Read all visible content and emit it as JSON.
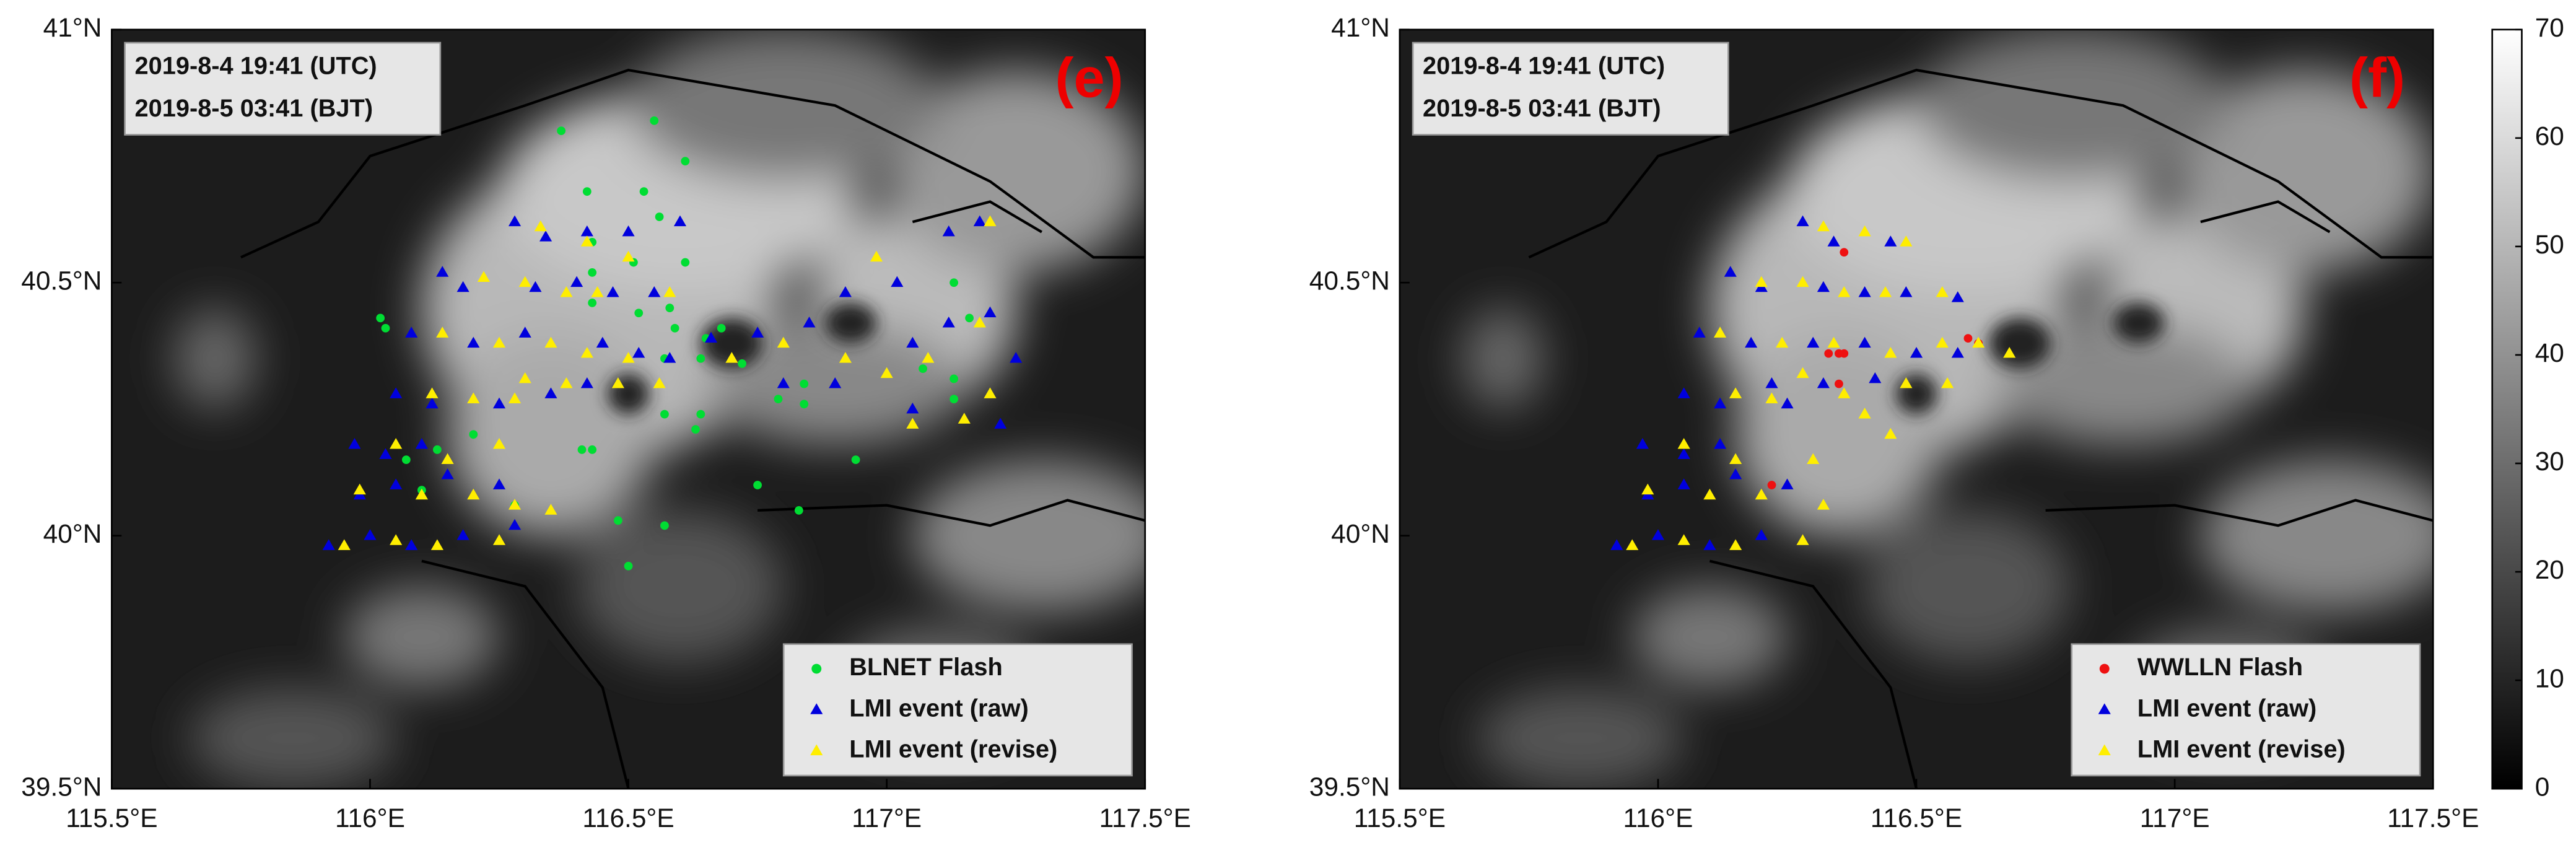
{
  "chart_data": [
    {
      "type": "scatter",
      "annotation": [
        "2019-8-4 19:41 (UTC)",
        "2019-8-5 03:41 (BJT)"
      ],
      "panel_label": "(e)",
      "xlim": [
        115.5,
        117.5
      ],
      "ylim": [
        39.5,
        41
      ],
      "xticks": [
        {
          "value": 115.5,
          "label": "115.5°E"
        },
        {
          "value": 116,
          "label": "116°E"
        },
        {
          "value": 116.5,
          "label": "116.5°E"
        },
        {
          "value": 117,
          "label": "117°E"
        },
        {
          "value": 117.5,
          "label": "117.5°E"
        }
      ],
      "yticks": [
        {
          "value": 39.5,
          "label": "39.5°N"
        },
        {
          "value": 40,
          "label": "40°N"
        },
        {
          "value": 40.5,
          "label": "40.5°N"
        },
        {
          "value": 41,
          "label": "41°N"
        }
      ],
      "legend": "lower right",
      "series": [
        {
          "name": "BLNET Flash",
          "color": "#00dd33",
          "marker": "circle",
          "x": [
            116.37,
            116.55,
            116.61,
            116.42,
            116.53,
            116.56,
            116.43,
            116.51,
            116.43,
            116.61,
            116.43,
            116.03,
            116.02,
            116.52,
            116.58,
            116.59,
            116.65,
            116.68,
            116.64,
            116.72,
            116.57,
            116.84,
            116.84,
            116.79,
            116.64,
            116.63,
            116.57,
            116.43,
            116.41,
            116.94,
            116.2,
            116.13,
            116.07,
            116.75,
            116.83,
            116.1,
            116.57,
            116.48,
            116.5,
            116.28,
            117.13,
            117.16,
            117.13,
            117.07,
            117.13
          ],
          "values": [
            40.8,
            40.82,
            40.74,
            40.68,
            40.68,
            40.63,
            40.58,
            40.54,
            40.52,
            40.54,
            40.46,
            40.41,
            40.43,
            40.44,
            40.45,
            40.41,
            40.39,
            40.41,
            40.35,
            40.34,
            40.35,
            40.3,
            40.26,
            40.27,
            40.24,
            40.21,
            40.24,
            40.17,
            40.17,
            40.15,
            40.2,
            40.17,
            40.15,
            40.1,
            40.05,
            40.09,
            40.02,
            40.03,
            39.94,
            40.06,
            40.31,
            40.43,
            40.27,
            40.33,
            40.5
          ]
        },
        {
          "name": "LMI event (raw)",
          "color": "#0000dd",
          "marker": "triangle",
          "x": [
            116.28,
            116.34,
            116.42,
            116.5,
            116.6,
            116.14,
            116.18,
            116.32,
            116.4,
            116.47,
            116.55,
            116.08,
            116.2,
            116.3,
            116.45,
            116.52,
            116.58,
            116.66,
            116.75,
            116.85,
            116.92,
            117.02,
            117.05,
            117.12,
            117.2,
            117.12,
            117.18,
            117.25,
            117.22,
            117.05,
            116.9,
            116.8,
            116.05,
            116.12,
            116.25,
            116.35,
            116.42,
            115.97,
            116.03,
            116.1,
            115.98,
            116.05,
            116.15,
            116.25,
            116.28,
            115.92,
            116.0,
            116.08,
            116.18
          ],
          "values": [
            40.62,
            40.59,
            40.6,
            40.6,
            40.62,
            40.52,
            40.49,
            40.49,
            40.5,
            40.48,
            40.48,
            40.4,
            40.38,
            40.4,
            40.38,
            40.36,
            40.35,
            40.39,
            40.4,
            40.42,
            40.48,
            40.5,
            40.38,
            40.42,
            40.44,
            40.6,
            40.62,
            40.35,
            40.22,
            40.25,
            40.3,
            40.3,
            40.28,
            40.26,
            40.26,
            40.28,
            40.3,
            40.18,
            40.16,
            40.18,
            40.08,
            40.1,
            40.12,
            40.1,
            40.02,
            39.98,
            40.0,
            39.98,
            40.0
          ]
        },
        {
          "name": "LMI event (revise)",
          "color": "#ffee00",
          "marker": "triangle",
          "x": [
            116.33,
            116.42,
            116.5,
            116.22,
            116.3,
            116.38,
            116.44,
            116.58,
            116.14,
            116.25,
            116.35,
            116.42,
            116.5,
            116.3,
            116.38,
            116.48,
            116.56,
            116.12,
            116.2,
            116.28,
            116.7,
            116.8,
            116.92,
            117.0,
            117.08,
            117.18,
            117.15,
            117.2,
            117.05,
            116.98,
            117.2,
            116.05,
            116.15,
            116.25,
            115.98,
            116.1,
            116.2,
            116.28,
            115.95,
            116.05,
            116.13,
            116.25,
            116.35
          ],
          "values": [
            40.61,
            40.58,
            40.55,
            40.51,
            40.5,
            40.48,
            40.48,
            40.48,
            40.4,
            40.38,
            40.38,
            40.36,
            40.35,
            40.31,
            40.3,
            40.3,
            40.3,
            40.28,
            40.27,
            40.27,
            40.35,
            40.38,
            40.35,
            40.32,
            40.35,
            40.42,
            40.23,
            40.28,
            40.22,
            40.55,
            40.62,
            40.18,
            40.15,
            40.18,
            40.09,
            40.08,
            40.08,
            40.06,
            39.98,
            39.99,
            39.98,
            39.99,
            40.05
          ]
        }
      ]
    },
    {
      "type": "scatter",
      "annotation": [
        "2019-8-4 19:41 (UTC)",
        "2019-8-5 03:41 (BJT)"
      ],
      "panel_label": "(f)",
      "xlim": [
        115.5,
        117.5
      ],
      "ylim": [
        39.5,
        41
      ],
      "xticks": [
        {
          "value": 115.5,
          "label": "115.5°E"
        },
        {
          "value": 116,
          "label": "116°E"
        },
        {
          "value": 116.5,
          "label": "116.5°E"
        },
        {
          "value": 117,
          "label": "117°E"
        },
        {
          "value": 117.5,
          "label": "117.5°E"
        }
      ],
      "yticks": [
        {
          "value": 39.5,
          "label": "39.5°N"
        },
        {
          "value": 40,
          "label": "40°N"
        },
        {
          "value": 40.5,
          "label": "40.5°N"
        },
        {
          "value": 41,
          "label": "41°N"
        }
      ],
      "legend": "lower right",
      "colorbar": {
        "lim": [
          0,
          70
        ],
        "ticks": [
          0,
          10,
          20,
          30,
          40,
          50,
          60,
          70
        ]
      },
      "series": [
        {
          "name": "WWLLN Flash",
          "color": "#ee1111",
          "marker": "circle",
          "x": [
            116.36,
            116.33,
            116.35,
            116.36,
            116.6,
            116.62,
            116.22,
            116.35
          ],
          "values": [
            40.56,
            40.36,
            40.36,
            40.36,
            40.39,
            40.38,
            40.1,
            40.3
          ]
        },
        {
          "name": "LMI event (raw)",
          "color": "#0000dd",
          "marker": "triangle",
          "x": [
            116.28,
            116.34,
            116.45,
            116.14,
            116.2,
            116.32,
            116.4,
            116.48,
            116.58,
            116.08,
            116.18,
            116.3,
            116.4,
            116.5,
            116.58,
            116.22,
            116.32,
            116.42,
            116.05,
            116.12,
            116.25,
            115.97,
            116.05,
            116.12,
            115.98,
            116.05,
            116.15,
            116.25,
            115.92,
            116.0,
            116.1,
            116.2
          ],
          "values": [
            40.62,
            40.58,
            40.58,
            40.52,
            40.49,
            40.49,
            40.48,
            40.48,
            40.47,
            40.4,
            40.38,
            40.38,
            40.38,
            40.36,
            40.36,
            40.3,
            40.3,
            40.31,
            40.28,
            40.26,
            40.26,
            40.18,
            40.16,
            40.18,
            40.08,
            40.1,
            40.12,
            40.1,
            39.98,
            40.0,
            39.98,
            40.0
          ]
        },
        {
          "name": "LMI event (revise)",
          "color": "#ffee00",
          "marker": "triangle",
          "x": [
            116.32,
            116.4,
            116.48,
            116.2,
            116.28,
            116.36,
            116.44,
            116.55,
            116.12,
            116.24,
            116.34,
            116.45,
            116.55,
            116.62,
            116.68,
            116.28,
            116.36,
            116.48,
            116.56,
            116.15,
            116.22,
            116.4,
            116.45,
            116.05,
            116.15,
            116.3,
            115.98,
            116.1,
            116.2,
            116.32,
            115.95,
            116.05,
            116.15,
            116.28
          ],
          "values": [
            40.61,
            40.6,
            40.58,
            40.5,
            40.5,
            40.48,
            40.48,
            40.48,
            40.4,
            40.38,
            40.38,
            40.36,
            40.38,
            40.38,
            40.36,
            40.32,
            40.28,
            40.3,
            40.3,
            40.28,
            40.27,
            40.24,
            40.2,
            40.18,
            40.15,
            40.15,
            40.09,
            40.08,
            40.08,
            40.06,
            39.98,
            39.99,
            39.98,
            39.99
          ]
        }
      ]
    }
  ]
}
